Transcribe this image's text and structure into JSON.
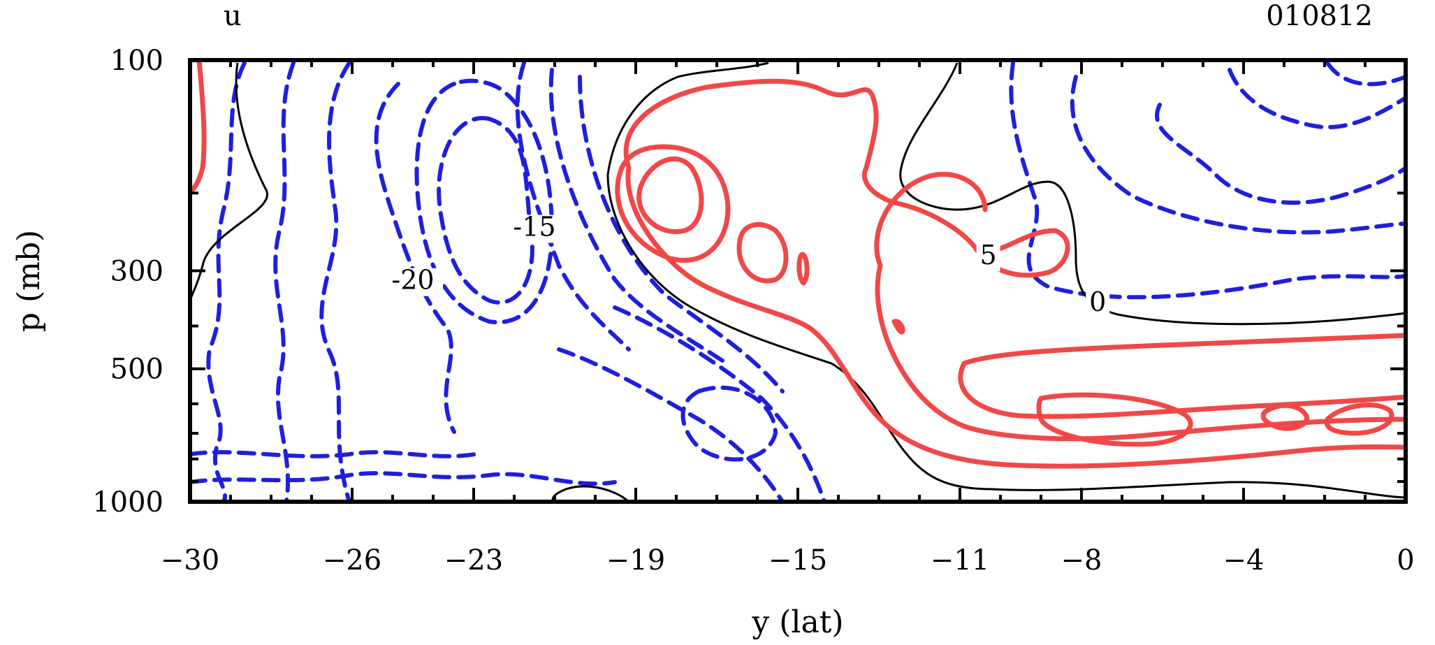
{
  "chart_data": {
    "type": "contour",
    "title": "u",
    "date_label": "010812",
    "xlabel": "y (lat)",
    "ylabel": "p (mb)",
    "xlim": [
      -30,
      0
    ],
    "ylim": [
      100,
      1000
    ],
    "y_scale": "log",
    "x_ticks": [
      "-30",
      "-26",
      "-23",
      "-19",
      "-15",
      "-11",
      "-8",
      "-4",
      "0"
    ],
    "x_tick_values": [
      -30,
      -26,
      -23,
      -19,
      -15,
      -11,
      -8,
      -4,
      0
    ],
    "y_ticks": [
      "100",
      "300",
      "500",
      "1000"
    ],
    "y_tick_values": [
      100,
      300,
      500,
      1000
    ],
    "contour_interval": 5,
    "series": [
      {
        "name": "negative",
        "style": "dashed",
        "color": "#1f1fdd",
        "levels": [
          -5,
          -10,
          -15,
          -20,
          -25
        ]
      },
      {
        "name": "zero",
        "style": "solid-thin",
        "color": "#000000",
        "levels": [
          0
        ]
      },
      {
        "name": "positive",
        "style": "solid-thick",
        "color": "#f04848",
        "levels": [
          5,
          10,
          15
        ]
      }
    ],
    "contour_labels": [
      {
        "text": "-20",
        "x": -24.5,
        "p": 330
      },
      {
        "text": "-15",
        "x": -21.5,
        "p": 250
      },
      {
        "text": "5",
        "x": -10.3,
        "p": 290
      },
      {
        "text": "0",
        "x": -7.6,
        "p": 370
      }
    ]
  }
}
